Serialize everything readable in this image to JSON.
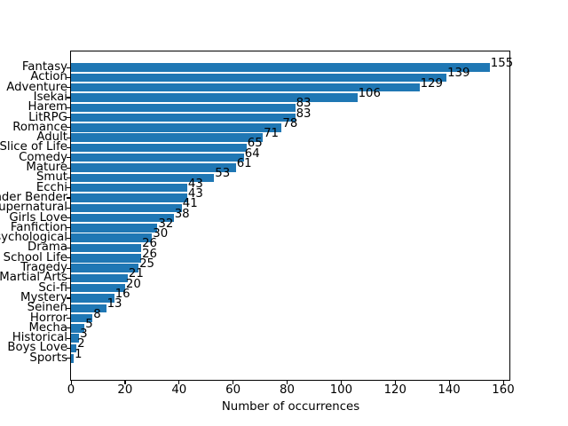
{
  "chart_data": {
    "type": "bar",
    "orientation": "horizontal",
    "title": "",
    "xlabel": "Number of occurrences",
    "ylabel": "",
    "categories": [
      "Fantasy",
      "Action",
      "Adventure",
      "Isekai",
      "Harem",
      "LitRPG",
      "Romance",
      "Adult",
      "Slice of Life",
      "Comedy",
      "Mature",
      "Smut",
      "Ecchi",
      "Gender Bender",
      "Supernatural",
      "Girls Love",
      "Fanfiction",
      "Psychological",
      "Drama",
      "School Life",
      "Tragedy",
      "Martial Arts",
      "Sci-fi",
      "Mystery",
      "Seinen",
      "Horror",
      "Mecha",
      "Historical",
      "Boys Love",
      "Sports"
    ],
    "values": [
      155,
      139,
      129,
      106,
      83,
      83,
      78,
      71,
      65,
      64,
      61,
      53,
      43,
      43,
      41,
      38,
      32,
      30,
      26,
      26,
      25,
      21,
      20,
      16,
      13,
      8,
      5,
      3,
      2,
      1
    ],
    "value_labels_shown": true,
    "xticks": [
      0,
      20,
      40,
      60,
      80,
      100,
      120,
      140,
      160
    ],
    "xlim": [
      0,
      162.6
    ],
    "grid": false,
    "legend": null,
    "bar_color": "#1f77b4",
    "text_color": "#000000",
    "background_color": "#ffffff"
  }
}
